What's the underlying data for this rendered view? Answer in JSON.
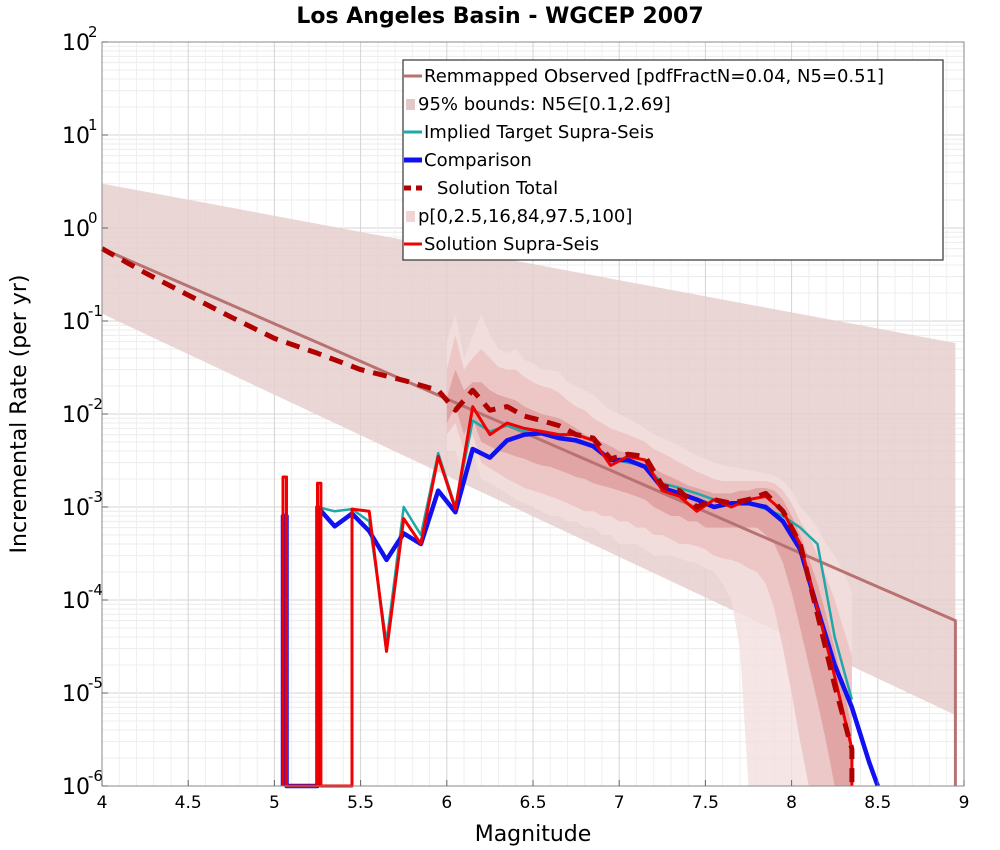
{
  "chart_data": {
    "type": "line",
    "title": "Los Angeles Basin - WGCEP 2007",
    "xlabel": "Magnitude",
    "ylabel": "Incremental Rate (per yr)",
    "xlim": [
      4,
      9
    ],
    "ylim": [
      1e-06,
      100
    ],
    "yscale": "log",
    "grid": true,
    "legend_position": "top-right",
    "x_ticks": [
      "4",
      "4.5",
      "5",
      "5.5",
      "6",
      "6.5",
      "7",
      "7.5",
      "8",
      "8.5",
      "9"
    ],
    "y_ticks": [
      {
        "base": "10",
        "exp": "2",
        "value": 100
      },
      {
        "base": "10",
        "exp": "1",
        "value": 10
      },
      {
        "base": "10",
        "exp": "0",
        "value": 1
      },
      {
        "base": "10",
        "exp": "-1",
        "value": 0.1
      },
      {
        "base": "10",
        "exp": "-2",
        "value": 0.01
      },
      {
        "base": "10",
        "exp": "-3",
        "value": 0.001
      },
      {
        "base": "10",
        "exp": "-4",
        "value": 0.0001
      },
      {
        "base": "10",
        "exp": "-5",
        "value": 1e-05
      },
      {
        "base": "10",
        "exp": "-6",
        "value": 1e-06
      }
    ],
    "legend": [
      {
        "label": "Remmapped Observed [pdfFractN=0.04, N5=0.51]",
        "style": "line",
        "color": "#b87272"
      },
      {
        "label": "95% bounds: N5∈[0.1,2.69]",
        "style": "box",
        "color": "#e2c8c8"
      },
      {
        "label": "Implied Target Supra-Seis",
        "style": "line",
        "color": "#20a8a8"
      },
      {
        "label": "Comparison",
        "style": "thick",
        "color": "#1010f0"
      },
      {
        "label": "Solution Total",
        "style": "dash",
        "color": "#b00000"
      },
      {
        "label": "p[0,2.5,16,84,97.5,100]",
        "style": "box",
        "color": "#f2d4d4"
      },
      {
        "label": "Solution Supra-Seis",
        "style": "line",
        "color": "#f00000"
      }
    ],
    "bounds_95": {
      "color": "#e6cccc",
      "x": [
        4.0,
        8.95
      ],
      "upper": [
        3.0,
        0.058
      ],
      "lower": [
        0.12,
        5.8e-06
      ],
      "upper_drop": [
        8.95,
        0.0005,
        1e-06
      ]
    },
    "percentile_bands": [
      {
        "name": "p0-p100",
        "color": "#f4dede",
        "x": [
          6.0,
          6.05,
          6.1,
          6.15,
          6.2,
          6.25,
          6.3,
          6.35,
          6.4,
          6.45,
          6.5,
          6.55,
          6.6,
          6.65,
          6.7,
          6.75,
          6.8,
          6.85,
          6.9,
          6.95,
          7.0,
          7.05,
          7.1,
          7.15,
          7.2,
          7.25,
          7.3,
          7.35,
          7.4,
          7.45,
          7.5,
          7.55,
          7.6,
          7.65,
          7.7,
          7.75,
          7.8,
          7.85,
          7.9,
          7.95,
          8.0,
          8.05,
          8.1,
          8.15,
          8.2,
          8.25,
          8.3,
          8.35
        ],
        "upper": [
          0.06,
          0.12,
          0.04,
          0.07,
          0.12,
          0.07,
          0.05,
          0.045,
          0.05,
          0.038,
          0.035,
          0.03,
          0.03,
          0.028,
          0.022,
          0.02,
          0.018,
          0.016,
          0.013,
          0.011,
          0.01,
          0.009,
          0.008,
          0.007,
          0.006,
          0.0055,
          0.005,
          0.0045,
          0.004,
          0.0036,
          0.0033,
          0.003,
          0.0028,
          0.0027,
          0.0026,
          0.0025,
          0.0024,
          0.0023,
          0.0022,
          0.0019,
          0.0015,
          0.001,
          0.0008,
          0.0006,
          0.0004,
          0.0003,
          0.0002,
          0.00012
        ],
        "lower": [
          0.004,
          0.004,
          0.002,
          0.004,
          0.002,
          0.0018,
          0.0016,
          0.0014,
          0.0012,
          0.0011,
          0.001,
          0.0009,
          0.0008,
          0.0008,
          0.0007,
          0.0007,
          0.0006,
          0.0006,
          0.0005,
          0.0005,
          0.0004,
          0.0004,
          0.0004,
          0.00035,
          0.0003,
          0.0003,
          0.0003,
          0.00028,
          0.00026,
          0.00025,
          0.00022,
          0.0002,
          0.00015,
          0.0001,
          3e-05,
          1e-06,
          1e-06,
          1e-06,
          1e-06,
          1e-06,
          1e-06,
          1e-06,
          1e-06,
          1e-06,
          1e-06,
          1e-06,
          1e-06,
          1e-06
        ]
      },
      {
        "name": "p2.5-p97.5",
        "color": "#ebc0c0",
        "x": [
          6.0,
          6.05,
          6.1,
          6.15,
          6.2,
          6.25,
          6.3,
          6.35,
          6.4,
          6.45,
          6.5,
          6.55,
          6.6,
          6.65,
          6.7,
          6.75,
          6.8,
          6.85,
          6.9,
          6.95,
          7.0,
          7.05,
          7.1,
          7.15,
          7.2,
          7.25,
          7.3,
          7.35,
          7.4,
          7.45,
          7.5,
          7.55,
          7.6,
          7.65,
          7.7,
          7.75,
          7.8,
          7.85,
          7.9,
          7.95,
          8.0,
          8.05,
          8.1,
          8.15,
          8.2,
          8.25,
          8.3,
          8.35
        ],
        "upper": [
          0.03,
          0.07,
          0.03,
          0.04,
          0.05,
          0.04,
          0.032,
          0.03,
          0.03,
          0.025,
          0.022,
          0.02,
          0.019,
          0.017,
          0.014,
          0.012,
          0.011,
          0.009,
          0.008,
          0.007,
          0.0065,
          0.006,
          0.0055,
          0.005,
          0.0042,
          0.0038,
          0.0034,
          0.003,
          0.0027,
          0.0024,
          0.0022,
          0.002,
          0.0019,
          0.0019,
          0.0019,
          0.0019,
          0.0019,
          0.0019,
          0.0018,
          0.0015,
          0.0011,
          0.0007,
          0.0005,
          0.0003,
          0.00018,
          0.0001,
          5e-05,
          2.5e-05
        ],
        "lower": [
          0.006,
          0.008,
          0.004,
          0.006,
          0.003,
          0.0026,
          0.0023,
          0.002,
          0.0018,
          0.0016,
          0.0015,
          0.0014,
          0.0013,
          0.0012,
          0.0011,
          0.001,
          0.0009,
          0.0009,
          0.0008,
          0.0008,
          0.0007,
          0.0007,
          0.0006,
          0.0006,
          0.0005,
          0.0005,
          0.00045,
          0.0004,
          0.0004,
          0.00038,
          0.00035,
          0.0003,
          0.00028,
          0.00027,
          0.00025,
          0.00022,
          0.0002,
          0.00015,
          8e-05,
          3e-05,
          1e-05,
          3e-06,
          1e-06,
          1e-06,
          1e-06,
          1e-06,
          1e-06,
          1e-06
        ]
      },
      {
        "name": "p16-p84",
        "color": "#de9c9c",
        "x": [
          6.0,
          6.05,
          6.1,
          6.15,
          6.2,
          6.25,
          6.3,
          6.35,
          6.4,
          6.45,
          6.5,
          6.55,
          6.6,
          6.65,
          6.7,
          6.75,
          6.8,
          6.85,
          6.9,
          6.95,
          7.0,
          7.05,
          7.1,
          7.15,
          7.2,
          7.25,
          7.3,
          7.35,
          7.4,
          7.45,
          7.5,
          7.55,
          7.6,
          7.65,
          7.7,
          7.75,
          7.8,
          7.85,
          7.9,
          7.95,
          8.0,
          8.05,
          8.1,
          8.15,
          8.2,
          8.25,
          8.3,
          8.35
        ],
        "upper": [
          0.015,
          0.03,
          0.018,
          0.022,
          0.022,
          0.018,
          0.016,
          0.015,
          0.014,
          0.012,
          0.011,
          0.01,
          0.0095,
          0.009,
          0.008,
          0.007,
          0.006,
          0.0055,
          0.005,
          0.0045,
          0.004,
          0.0038,
          0.0035,
          0.0032,
          0.0026,
          0.0023,
          0.0021,
          0.0019,
          0.0017,
          0.0016,
          0.0015,
          0.0014,
          0.0014,
          0.0014,
          0.0015,
          0.0015,
          0.0016,
          0.0016,
          0.0015,
          0.0012,
          0.0008,
          0.0005,
          0.00028,
          0.00015,
          7e-05,
          3e-05,
          1.2e-05,
          4e-06
        ],
        "lower": [
          0.008,
          0.012,
          0.006,
          0.009,
          0.005,
          0.0045,
          0.004,
          0.0038,
          0.0035,
          0.0033,
          0.003,
          0.0028,
          0.0027,
          0.0025,
          0.0023,
          0.0021,
          0.002,
          0.0018,
          0.0017,
          0.0016,
          0.0015,
          0.0014,
          0.0013,
          0.0012,
          0.001,
          0.0009,
          0.0008,
          0.0008,
          0.0007,
          0.0007,
          0.0006,
          0.0006,
          0.0006,
          0.0006,
          0.0006,
          0.0006,
          0.0006,
          0.0005,
          0.0004,
          0.00025,
          0.00012,
          5e-05,
          2e-05,
          8e-06,
          3e-06,
          1e-06,
          1e-06,
          1e-06
        ]
      }
    ],
    "series": [
      {
        "name": "Remmapped Observed [pdfFractN=0.04, N5=0.51]",
        "color": "#b87272",
        "width": 3,
        "dash": null,
        "x": [
          4.0,
          8.95,
          8.95
        ],
        "y": [
          0.6,
          6e-05,
          1e-06
        ]
      },
      {
        "name": "Implied Target Supra-Seis",
        "color": "#20a8a8",
        "width": 2.5,
        "dash": null,
        "x": [
          5.25,
          5.25,
          5.35,
          5.45,
          5.55,
          5.65,
          5.75,
          5.85,
          5.95,
          6.05,
          6.15,
          6.25,
          6.35,
          6.45,
          6.55,
          6.65,
          6.75,
          6.85,
          6.95,
          7.05,
          7.15,
          7.25,
          7.35,
          7.45,
          7.55,
          7.65,
          7.75,
          7.85,
          7.95,
          8.05,
          8.15,
          8.25,
          8.35
        ],
        "y": [
          1e-06,
          0.001,
          0.0009,
          0.00095,
          0.0007,
          3.5e-05,
          0.001,
          0.0005,
          0.0038,
          0.001,
          0.0085,
          0.0065,
          0.0075,
          0.0065,
          0.0062,
          0.0058,
          0.005,
          0.0045,
          0.0033,
          0.003,
          0.0028,
          0.0018,
          0.0016,
          0.0014,
          0.0012,
          0.0011,
          0.0011,
          0.00095,
          0.0008,
          0.0006,
          0.0004,
          4e-05,
          8.5e-06
        ]
      },
      {
        "name": "Comparison",
        "color": "#1010f0",
        "width": 4.5,
        "dash": null,
        "x": [
          5.05,
          5.05,
          5.07,
          5.07,
          5.25,
          5.25,
          5.35,
          5.45,
          5.55,
          5.65,
          5.75,
          5.85,
          5.95,
          6.05,
          6.15,
          6.25,
          6.35,
          6.45,
          6.55,
          6.65,
          6.75,
          6.85,
          6.95,
          7.05,
          7.15,
          7.25,
          7.35,
          7.45,
          7.55,
          7.65,
          7.75,
          7.85,
          7.95,
          8.05,
          8.15,
          8.25,
          8.35,
          8.45,
          8.5
        ],
        "y": [
          1e-06,
          0.0008,
          0.0008,
          1e-06,
          1e-06,
          0.001,
          0.00062,
          0.00085,
          0.00055,
          0.00027,
          0.00052,
          0.0004,
          0.0015,
          0.00088,
          0.0042,
          0.0034,
          0.0052,
          0.006,
          0.0062,
          0.0055,
          0.0052,
          0.0045,
          0.0032,
          0.0032,
          0.0027,
          0.0016,
          0.0014,
          0.0012,
          0.001,
          0.0011,
          0.0011,
          0.001,
          0.0007,
          0.00035,
          8e-05,
          2e-05,
          7e-06,
          1.8e-06,
          1e-06
        ]
      },
      {
        "name": "Solution Supra-Seis",
        "color": "#f00000",
        "width": 3,
        "dash": null,
        "x": [
          5.05,
          5.05,
          5.07,
          5.07,
          5.25,
          5.25,
          5.27,
          5.27,
          5.45,
          5.45,
          5.55,
          5.65,
          5.75,
          5.85,
          5.95,
          6.05,
          6.15,
          6.25,
          6.35,
          6.45,
          6.55,
          6.65,
          6.75,
          6.85,
          6.95,
          7.05,
          7.15,
          7.25,
          7.35,
          7.45,
          7.55,
          7.65,
          7.75,
          7.85,
          7.95,
          8.05,
          8.15,
          8.25,
          8.35,
          8.35
        ],
        "y": [
          1e-06,
          0.0021,
          0.0021,
          1e-06,
          1e-06,
          0.0018,
          0.0018,
          1e-06,
          1e-06,
          0.00095,
          0.0009,
          2.8e-05,
          0.00075,
          0.0004,
          0.0035,
          0.00095,
          0.012,
          0.006,
          0.008,
          0.007,
          0.0065,
          0.006,
          0.006,
          0.0052,
          0.0028,
          0.0035,
          0.0032,
          0.0015,
          0.0013,
          0.0009,
          0.0012,
          0.001,
          0.0012,
          0.0013,
          0.0009,
          0.0004,
          8e-05,
          1.5e-05,
          2.5e-06,
          1e-06
        ]
      },
      {
        "name": "Solution Total",
        "color": "#b00000",
        "width": 5,
        "dash": "14,9",
        "x": [
          4.0,
          4.25,
          4.5,
          4.75,
          5.0,
          5.25,
          5.5,
          5.75,
          5.95,
          6.05,
          6.15,
          6.25,
          6.35,
          6.45,
          6.55,
          6.65,
          6.75,
          6.85,
          6.95,
          7.05,
          7.15,
          7.25,
          7.35,
          7.45,
          7.55,
          7.65,
          7.75,
          7.85,
          7.95,
          8.05,
          8.15,
          8.25,
          8.35,
          8.35
        ],
        "y": [
          0.6,
          0.33,
          0.19,
          0.11,
          0.065,
          0.045,
          0.03,
          0.023,
          0.018,
          0.011,
          0.018,
          0.011,
          0.012,
          0.0095,
          0.0085,
          0.0075,
          0.006,
          0.0055,
          0.0033,
          0.0037,
          0.0035,
          0.0017,
          0.0015,
          0.001,
          0.0012,
          0.0011,
          0.0012,
          0.0014,
          0.0009,
          0.0004,
          7e-05,
          1.2e-05,
          2.5e-06,
          1e-06
        ]
      }
    ]
  }
}
